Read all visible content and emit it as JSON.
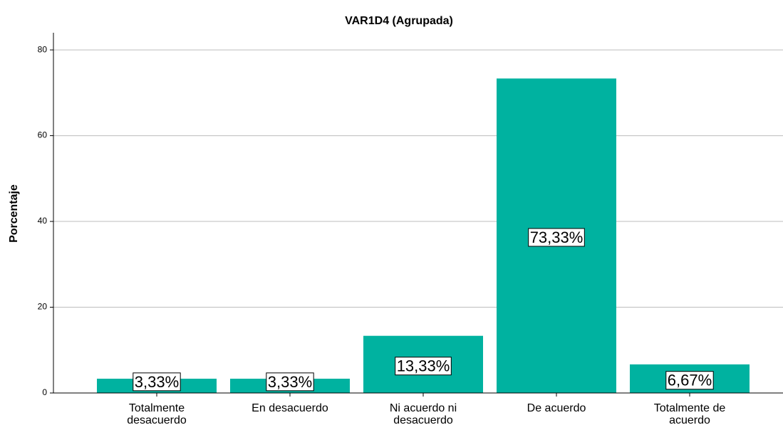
{
  "chart_data": {
    "type": "bar",
    "title": "VAR1D4 (Agrupada)",
    "y_label": "Porcentaje",
    "categories": [
      "Totalmente desacuerdo",
      "En desacuerdo",
      "Ni acuerdo ni desacuerdo",
      "De acuerdo",
      "Totalmente de acuerdo"
    ],
    "values": [
      3.33,
      3.33,
      13.33,
      73.33,
      6.67
    ],
    "value_labels": [
      "3,33%",
      "3,33%",
      "13,33%",
      "73,33%",
      "6,67%"
    ],
    "color": "#00b2a0",
    "ylim": [
      0,
      84
    ],
    "yticks": [
      0,
      20,
      40,
      60,
      80
    ],
    "grid": true
  }
}
